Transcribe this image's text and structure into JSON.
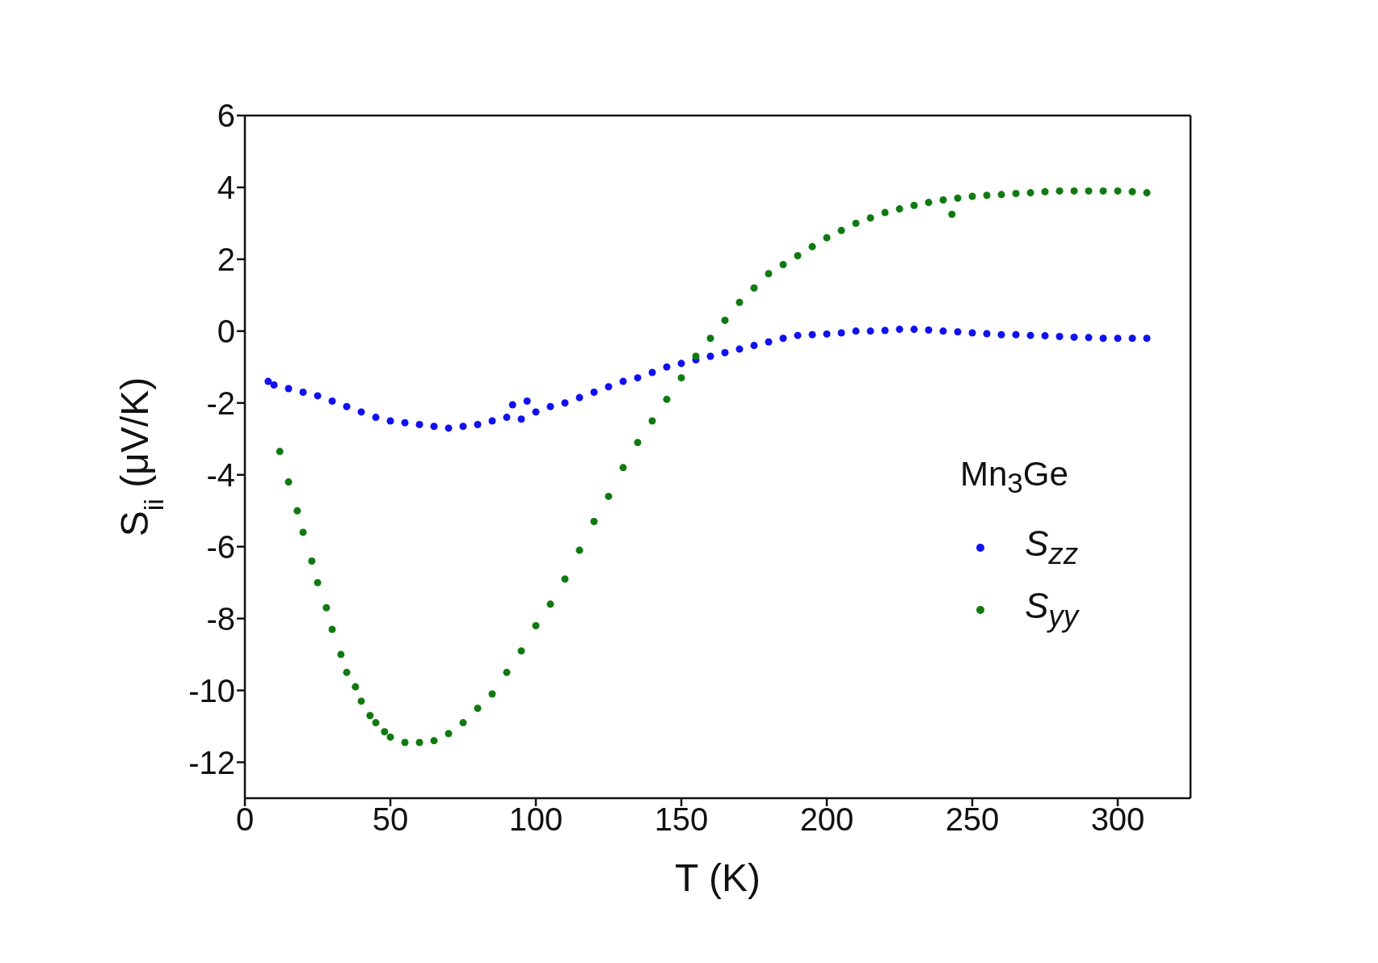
{
  "chart_data": {
    "type": "scatter",
    "xlabel": "T (K)",
    "ylabel": "S$_{ii}$ (μV/K)",
    "legend_title": "Mn$_{3}$Ge",
    "legend": "right",
    "marker": "circle",
    "xlim": [
      0,
      325
    ],
    "xticks": [
      0,
      50,
      100,
      150,
      200,
      250,
      300
    ],
    "ylim": [
      -13,
      6
    ],
    "yticks": [
      -12,
      -10,
      -8,
      -6,
      -4,
      -2,
      0,
      2,
      4,
      6
    ],
    "series": [
      {
        "name": "S$_{zz}$",
        "color": "#1010f0",
        "x": [
          8,
          10,
          15,
          20,
          25,
          30,
          35,
          40,
          45,
          50,
          55,
          60,
          65,
          70,
          75,
          80,
          85,
          90,
          92,
          95,
          97,
          100,
          105,
          110,
          115,
          120,
          125,
          130,
          135,
          140,
          145,
          150,
          155,
          160,
          165,
          170,
          175,
          180,
          185,
          190,
          195,
          200,
          205,
          210,
          215,
          220,
          225,
          230,
          235,
          240,
          245,
          250,
          255,
          260,
          265,
          270,
          275,
          280,
          285,
          290,
          295,
          300,
          305,
          310
        ],
        "values": [
          -1.4,
          -1.5,
          -1.6,
          -1.7,
          -1.8,
          -1.95,
          -2.1,
          -2.25,
          -2.4,
          -2.5,
          -2.55,
          -2.6,
          -2.65,
          -2.7,
          -2.65,
          -2.6,
          -2.5,
          -2.4,
          -2.05,
          -2.45,
          -1.95,
          -2.25,
          -2.1,
          -2.0,
          -1.85,
          -1.7,
          -1.55,
          -1.4,
          -1.3,
          -1.15,
          -1.0,
          -0.9,
          -0.8,
          -0.7,
          -0.6,
          -0.5,
          -0.4,
          -0.3,
          -0.2,
          -0.12,
          -0.1,
          -0.08,
          -0.05,
          0.0,
          0.0,
          0.02,
          0.05,
          0.05,
          0.03,
          0.0,
          -0.02,
          -0.05,
          -0.07,
          -0.1,
          -0.1,
          -0.12,
          -0.13,
          -0.15,
          -0.17,
          -0.18,
          -0.2,
          -0.2,
          -0.2,
          -0.2
        ]
      },
      {
        "name": "S$_{yy}$",
        "color": "#107a10",
        "x": [
          12,
          15,
          18,
          20,
          23,
          25,
          28,
          30,
          33,
          35,
          38,
          40,
          43,
          45,
          48,
          50,
          55,
          60,
          65,
          70,
          75,
          80,
          85,
          90,
          95,
          100,
          105,
          110,
          115,
          120,
          125,
          130,
          135,
          140,
          145,
          150,
          155,
          160,
          165,
          170,
          175,
          180,
          185,
          190,
          195,
          200,
          205,
          210,
          215,
          220,
          225,
          230,
          235,
          240,
          243,
          245,
          250,
          255,
          260,
          265,
          270,
          275,
          280,
          285,
          290,
          295,
          300,
          305,
          310
        ],
        "values": [
          -3.35,
          -4.2,
          -5.0,
          -5.6,
          -6.4,
          -7.0,
          -7.7,
          -8.3,
          -9.0,
          -9.5,
          -9.9,
          -10.3,
          -10.7,
          -10.9,
          -11.15,
          -11.3,
          -11.45,
          -11.45,
          -11.4,
          -11.2,
          -10.9,
          -10.5,
          -10.1,
          -9.5,
          -8.9,
          -8.2,
          -7.6,
          -6.9,
          -6.1,
          -5.3,
          -4.6,
          -3.8,
          -3.1,
          -2.5,
          -1.9,
          -1.3,
          -0.7,
          -0.2,
          0.3,
          0.8,
          1.2,
          1.6,
          1.85,
          2.1,
          2.35,
          2.6,
          2.8,
          3.0,
          3.15,
          3.3,
          3.4,
          3.5,
          3.58,
          3.65,
          3.25,
          3.7,
          3.75,
          3.78,
          3.8,
          3.83,
          3.85,
          3.88,
          3.9,
          3.9,
          3.9,
          3.9,
          3.9,
          3.88,
          3.85
        ]
      }
    ]
  }
}
